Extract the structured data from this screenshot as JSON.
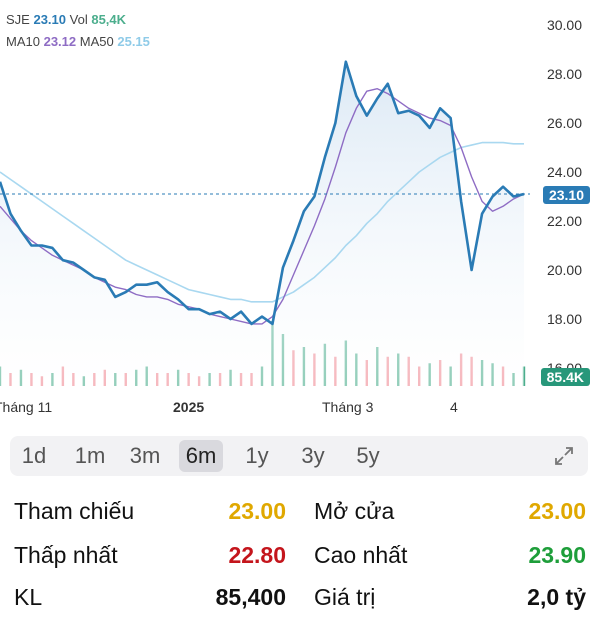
{
  "legend": {
    "line1": {
      "symbol": "SJE",
      "price": "23.10",
      "vol_label": "Vol",
      "vol": "85,4K"
    },
    "line2": {
      "ma10_label": "MA10",
      "ma10": "23.12",
      "ma50_label": "MA50",
      "ma50": "25.15"
    }
  },
  "colors": {
    "price_line": "#2a7bb5",
    "area": "#dce9f5",
    "ma10": "#8e6cc4",
    "ma50": "#a9d8f0",
    "vol_up": "#4cae8d",
    "vol_down": "#f08a94",
    "tag_price": "#2a7bb5",
    "tag_vol": "#27977a",
    "yellow": "#e0a800",
    "red": "#c4151c",
    "green": "#1e9e3a"
  },
  "chart_data": {
    "type": "line",
    "ylim": [
      16,
      30
    ],
    "y_ticks": [
      "30.00",
      "28.00",
      "26.00",
      "24.00",
      "22.00",
      "20.00",
      "18.00",
      "16.00"
    ],
    "x_ticks": [
      "Tháng 11",
      "2025",
      "Tháng 3",
      "4"
    ],
    "current_price_tag": "23.10",
    "current_volume_tag": "85.4K",
    "price": [
      23.6,
      22.3,
      21.6,
      21.0,
      21.0,
      20.9,
      20.4,
      20.3,
      20.0,
      19.7,
      19.6,
      18.9,
      19.1,
      19.4,
      19.4,
      19.5,
      19.1,
      18.8,
      18.4,
      18.4,
      18.2,
      18.3,
      18.0,
      18.3,
      17.8,
      18.1,
      17.8,
      20.1,
      21.2,
      22.4,
      23.0,
      24.6,
      26.0,
      28.5,
      27.1,
      26.3,
      27.0,
      27.6,
      26.4,
      26.5,
      26.3,
      25.8,
      26.6,
      26.2,
      22.8,
      20.0,
      22.3,
      23.0,
      23.4,
      23.0,
      23.1
    ],
    "ma10": [
      22.6,
      22.1,
      21.6,
      21.2,
      20.9,
      20.6,
      20.4,
      20.2,
      20.0,
      19.7,
      19.5,
      19.3,
      19.2,
      19.0,
      18.9,
      18.9,
      18.8,
      18.6,
      18.5,
      18.4,
      18.2,
      18.1,
      18.0,
      17.9,
      17.8,
      17.8,
      18.1,
      18.8,
      19.8,
      20.8,
      21.8,
      22.9,
      24.2,
      25.6,
      26.6,
      27.3,
      27.4,
      27.2,
      26.9,
      26.6,
      26.4,
      26.2,
      26.1,
      25.9,
      25.0,
      23.8,
      22.8,
      22.4,
      22.6,
      22.9,
      23.1
    ],
    "ma50": [
      24.0,
      23.7,
      23.4,
      23.1,
      22.8,
      22.5,
      22.2,
      21.9,
      21.6,
      21.3,
      21.0,
      20.7,
      20.4,
      20.2,
      20.0,
      19.8,
      19.6,
      19.4,
      19.2,
      19.1,
      19.0,
      18.9,
      18.8,
      18.8,
      18.7,
      18.7,
      18.7,
      18.9,
      19.1,
      19.4,
      19.7,
      20.1,
      20.5,
      21.0,
      21.4,
      21.9,
      22.3,
      22.8,
      23.2,
      23.6,
      24.0,
      24.3,
      24.6,
      24.8,
      25.0,
      25.1,
      25.2,
      25.2,
      25.2,
      25.15,
      25.15
    ],
    "volume": [
      0.3,
      0.2,
      0.25,
      0.2,
      0.15,
      0.2,
      0.3,
      0.2,
      0.15,
      0.2,
      0.25,
      0.2,
      0.2,
      0.25,
      0.3,
      0.2,
      0.2,
      0.25,
      0.2,
      0.15,
      0.2,
      0.2,
      0.25,
      0.2,
      0.2,
      0.3,
      1.0,
      0.8,
      0.55,
      0.6,
      0.5,
      0.65,
      0.45,
      0.7,
      0.5,
      0.4,
      0.6,
      0.45,
      0.5,
      0.45,
      0.3,
      0.35,
      0.4,
      0.3,
      0.5,
      0.45,
      0.4,
      0.35,
      0.3,
      0.2,
      0.3
    ],
    "volume_up": [
      1,
      0,
      1,
      0,
      0,
      1,
      0,
      0,
      1,
      0,
      0,
      1,
      0,
      1,
      1,
      0,
      0,
      1,
      0,
      0,
      1,
      0,
      1,
      0,
      0,
      1,
      1,
      1,
      0,
      1,
      0,
      1,
      0,
      1,
      1,
      0,
      1,
      0,
      1,
      0,
      0,
      1,
      0,
      1,
      0,
      0,
      1,
      1,
      0,
      1,
      1
    ]
  },
  "range": {
    "options": [
      "1d",
      "1m",
      "3m",
      "6m",
      "1y",
      "3y",
      "5y"
    ],
    "selected": "6m"
  },
  "stats": {
    "ref_label": "Tham chiếu",
    "ref_value": "23.00",
    "open_label": "Mở cửa",
    "open_value": "23.00",
    "low_label": "Thấp nhất",
    "low_value": "22.80",
    "high_label": "Cao nhất",
    "high_value": "23.90",
    "vol_label": "KL",
    "vol_value": "85,400",
    "value_label": "Giá trị",
    "value_value": "2,0 tỷ"
  }
}
